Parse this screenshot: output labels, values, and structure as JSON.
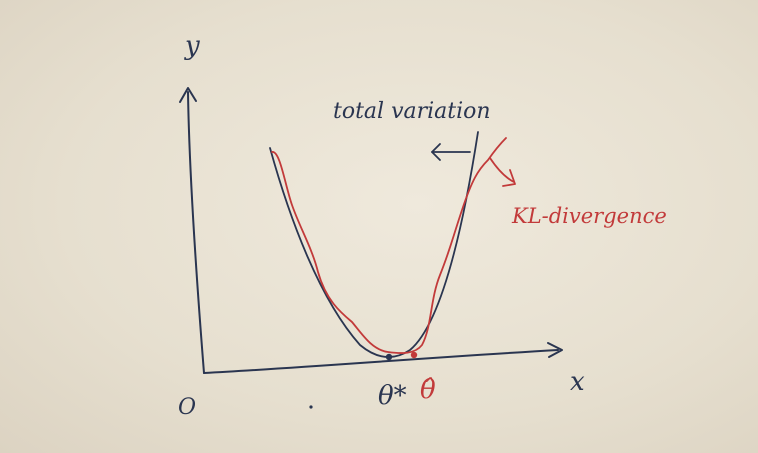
{
  "labels": {
    "y_axis": "y",
    "x_axis": "x",
    "origin": "O",
    "theta_star": "θ*",
    "theta_hat": "θ̂",
    "total_variation": "total variation",
    "kl_divergence": "KL-divergence"
  },
  "colors": {
    "paper": "#e7e0d1",
    "dark_ink": "#2a3550",
    "red_ink": "#c23a3a"
  }
}
